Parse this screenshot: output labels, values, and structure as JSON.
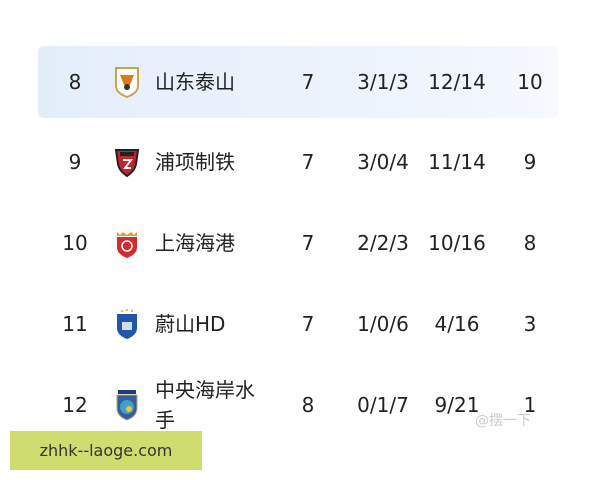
{
  "rows": [
    {
      "rank": "8",
      "team": "山东泰山",
      "logo": "shandong-taishan-crest",
      "played": "7",
      "wdl": "3/1/3",
      "goals": "12/14",
      "points": "10",
      "highlighted": true
    },
    {
      "rank": "9",
      "team": "浦项制铁",
      "logo": "pohang-steelers-crest",
      "played": "7",
      "wdl": "3/0/4",
      "goals": "11/14",
      "points": "9"
    },
    {
      "rank": "10",
      "team": "上海海港",
      "logo": "shanghai-port-crest",
      "played": "7",
      "wdl": "2/2/3",
      "goals": "10/16",
      "points": "8"
    },
    {
      "rank": "11",
      "team": "蔚山HD",
      "logo": "ulsan-hd-crest",
      "played": "7",
      "wdl": "1/0/6",
      "goals": "4/16",
      "points": "3"
    },
    {
      "rank": "12",
      "team": "中央海岸水手",
      "logo": "central-coast-mariners-crest",
      "played": "8",
      "wdl": "0/1/7",
      "goals": "9/21",
      "points": "1"
    }
  ],
  "watermark": "zhhk--laoge.com",
  "watermark2": "@摆一下",
  "colors": {
    "highlight": "#e8f0fc",
    "watermark_bg": "#cfdd6e"
  }
}
